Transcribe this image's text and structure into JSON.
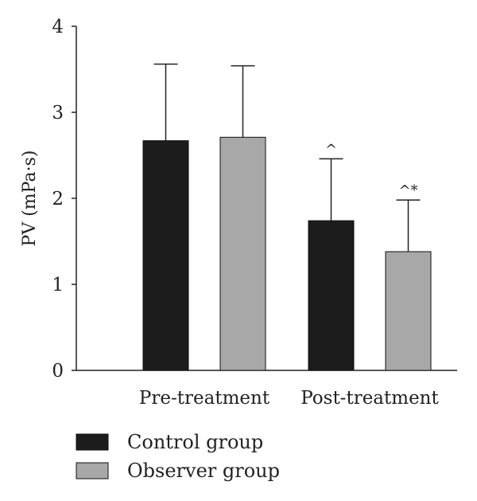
{
  "chart_data": {
    "type": "bar",
    "categories": [
      "Pre-treatment",
      "Post-treatment"
    ],
    "ylabel": "PV (mPa·s)",
    "ylim": [
      0,
      4
    ],
    "yticks": [
      0,
      1,
      2,
      3,
      4
    ],
    "grid": false,
    "legend_position": "bottom-left",
    "error_bars": "upper",
    "series": [
      {
        "name": "Control group",
        "color": "#1c1c1c",
        "values": [
          2.67,
          1.74
        ],
        "errors": [
          0.89,
          0.72
        ],
        "annotations": [
          "",
          "^"
        ]
      },
      {
        "name": "Observer group",
        "color": "#a8a8a8",
        "values": [
          2.71,
          1.38
        ],
        "errors": [
          0.83,
          0.6
        ],
        "annotations": [
          "",
          "^*"
        ]
      }
    ]
  }
}
